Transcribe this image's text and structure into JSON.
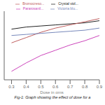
{
  "chart_data": {
    "type": "line",
    "title": "Fig-1: Graph showing the effect of dose for a",
    "xlabel": "Dose in gms",
    "x": [
      0.3,
      0.4,
      0.5,
      0.6,
      0.7,
      0.8,
      0.9
    ],
    "series": [
      {
        "name": "Crystal viol...",
        "color": "#222222",
        "values": [
          88,
          90,
          91,
          92,
          93,
          94,
          96
        ]
      },
      {
        "name": "Bromocreso...",
        "color": "#c06060",
        "values": [
          75,
          80,
          85,
          89,
          92,
          95,
          98
        ]
      },
      {
        "name": "Victoria blu...",
        "color": "#7788bb",
        "values": [
          82,
          83,
          84,
          85,
          86,
          87,
          89
        ]
      },
      {
        "name": "Pararosanil...",
        "color": "#cc44bb",
        "values": [
          48,
          56,
          63,
          68,
          73,
          77,
          82
        ]
      }
    ],
    "xlim": [
      0.25,
      0.9
    ],
    "xticks": [
      0.3,
      0.4,
      0.5,
      0.6,
      0.7,
      0.8,
      0.9
    ],
    "ylim": [
      40,
      105
    ],
    "tick_labels": "x",
    "legend": "top",
    "grid": false
  }
}
